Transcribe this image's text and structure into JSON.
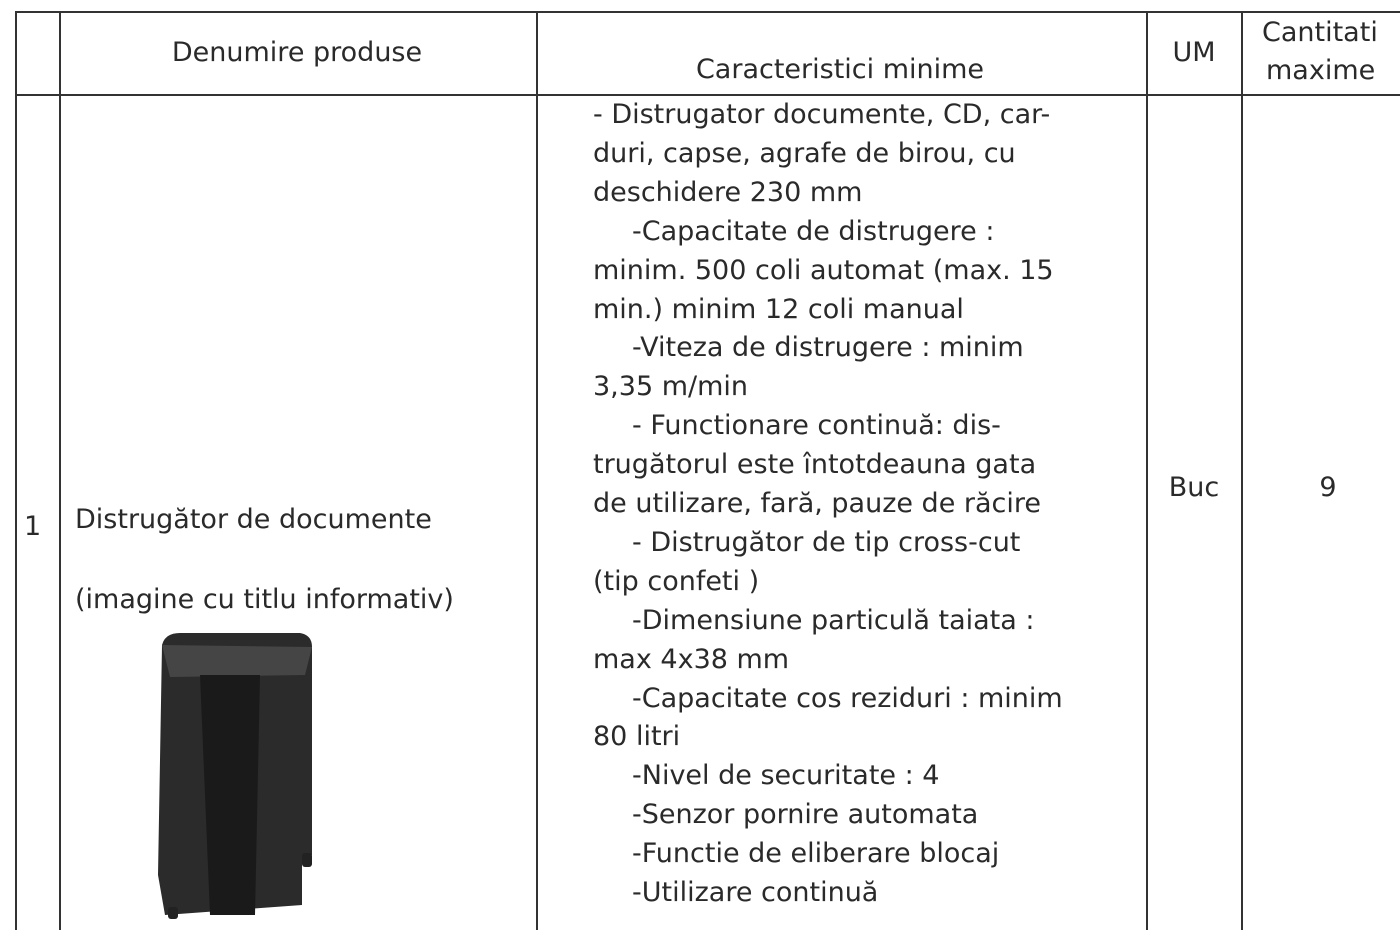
{
  "table": {
    "header": [
      "",
      "Denumire produse",
      "Caracteristici minime",
      "UM",
      [
        "Cantitati",
        "maxime"
      ]
    ],
    "rows": [
      {
        "number": "1",
        "name": "Distrugător de documente",
        "note": "(imagine cu titlu informativ)",
        "characteristics": [
          "- Distrugator documente, CD, car-",
          "duri, capse, agrafe de birou, cu",
          "deschidere 230 mm",
          "-Capacitate de distrugere :",
          "minim. 500 coli automat (max. 15",
          "min.) minim 12 coli manual",
          "-Viteza de distrugere : minim",
          "3,35 m/min",
          "- Functionare continuă: dis-",
          "trugătorul este întotdeauna gata",
          "de utilizare, fară, pauze de răcire",
          "- Distrugător de tip cross-cut",
          "(tip confeti )",
          "-Dimensiune particulă taiata :",
          "max 4x38 mm",
          "-Capacitate cos reziduri : minim",
          "80 litri",
          "-Nivel de securitate : 4",
          "-Senzor pornire automata",
          "-Functie de eliberare blocaj",
          "-Utilizare continuă"
        ],
        "um": "Buc",
        "quantity": "9"
      }
    ]
  }
}
